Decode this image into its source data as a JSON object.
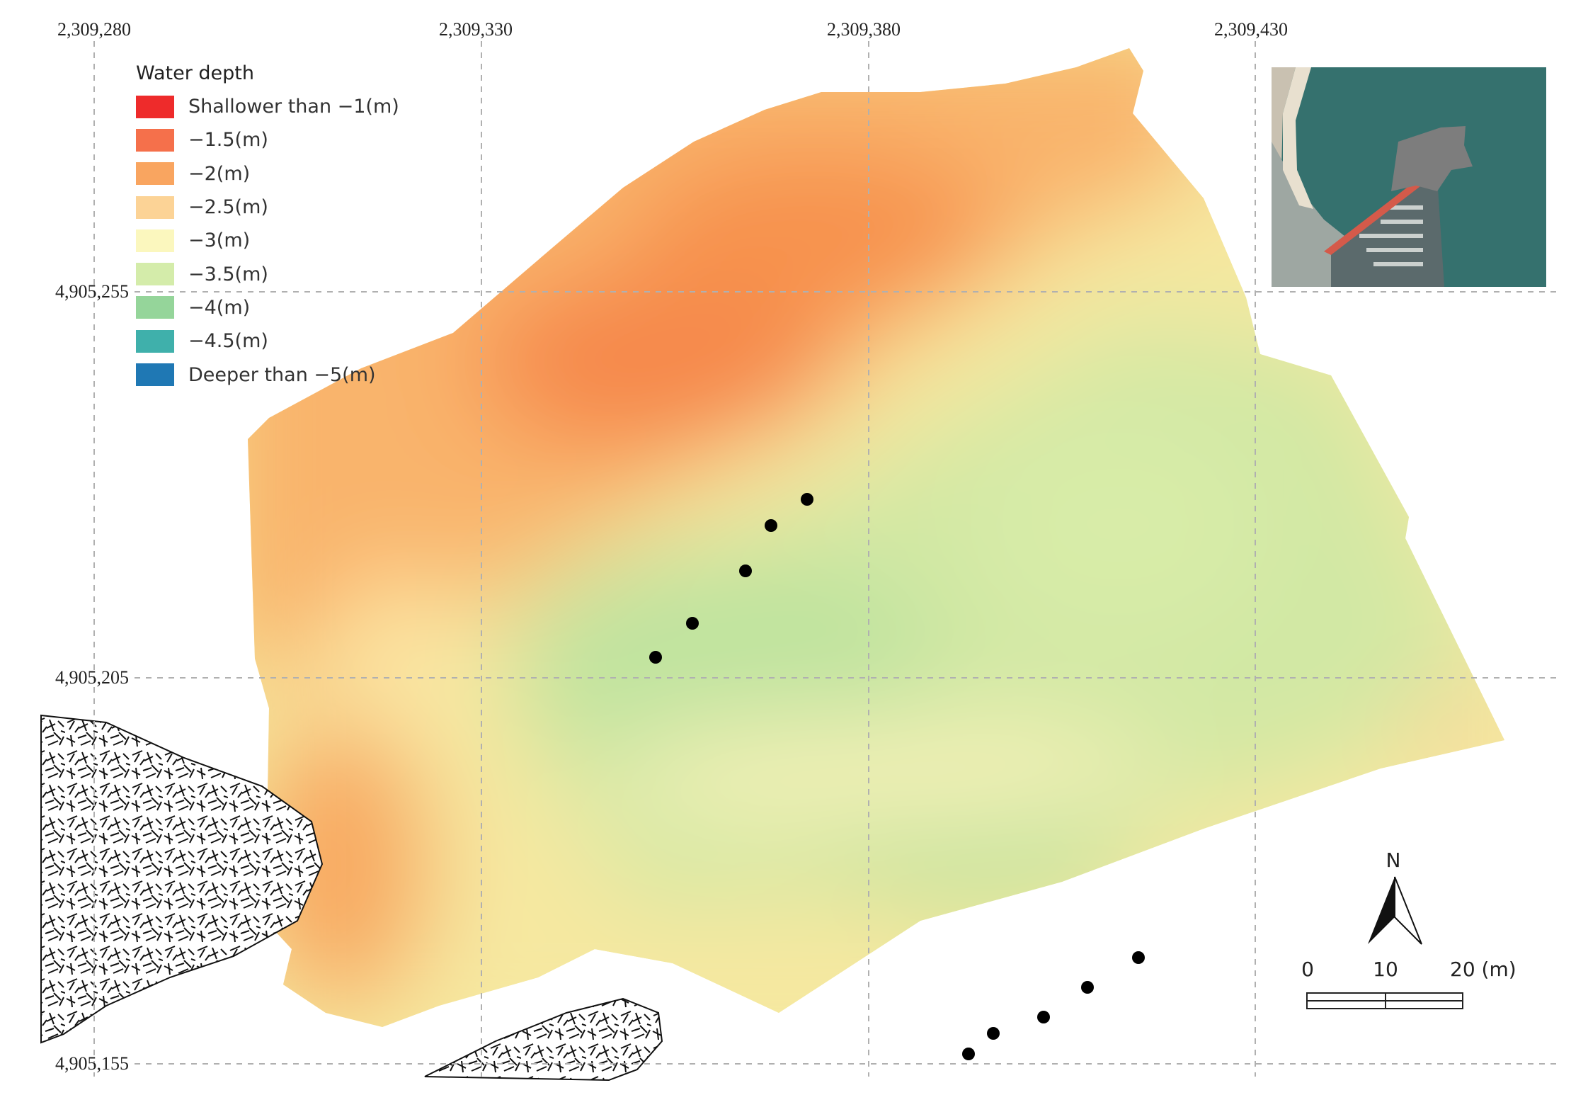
{
  "grid": {
    "x_labels": [
      "2,309,280",
      "2,309,330",
      "2,309,380",
      "2,309,430"
    ],
    "y_labels": [
      "4,905,255",
      "4,905,205",
      "4,905,155"
    ]
  },
  "legend": {
    "title": "Water depth",
    "items": [
      {
        "label": "Shallower than −1(m)",
        "color": "#ee2b2b"
      },
      {
        "label": "−1.5(m)",
        "color": "#f5704b"
      },
      {
        "label": "−2(m)",
        "color": "#f9a560"
      },
      {
        "label": "−2.5(m)",
        "color": "#fcd396"
      },
      {
        "label": "−3(m)",
        "color": "#fbf7be"
      },
      {
        "label": "−3.5(m)",
        "color": "#d4ecaa"
      },
      {
        "label": "−4(m)",
        "color": "#95d59a"
      },
      {
        "label": "−4.5(m)",
        "color": "#3fb0ab"
      },
      {
        "label": "Deeper than −5(m)",
        "color": "#1f78b4"
      }
    ]
  },
  "north_arrow": {
    "label": "N"
  },
  "scale_bar": {
    "ticks": [
      "0",
      "10",
      "20 (m)"
    ]
  }
}
